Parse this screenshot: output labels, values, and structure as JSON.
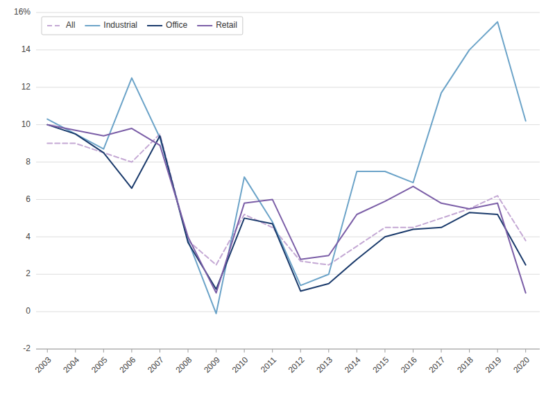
{
  "chart_data": {
    "type": "line",
    "x": [
      2003,
      2004,
      2005,
      2006,
      2007,
      2008,
      2009,
      2010,
      2011,
      2012,
      2013,
      2014,
      2015,
      2016,
      2017,
      2018,
      2019,
      2020
    ],
    "series": [
      {
        "name": "All",
        "color": "#c4a8d4",
        "line_style": "dashed",
        "values": [
          9.0,
          9.0,
          8.5,
          8.0,
          9.5,
          3.8,
          2.5,
          5.2,
          4.5,
          2.7,
          2.5,
          3.5,
          4.5,
          4.5,
          5.0,
          5.5,
          6.2,
          3.8
        ]
      },
      {
        "name": "Industrial",
        "color": "#6ba3c8",
        "line_style": "solid",
        "values": [
          10.3,
          9.5,
          8.7,
          12.5,
          9.3,
          3.8,
          -0.1,
          7.2,
          4.8,
          1.4,
          2.0,
          7.5,
          7.5,
          6.9,
          11.7,
          14.0,
          15.5,
          10.2
        ]
      },
      {
        "name": "Office",
        "color": "#1a3a6b",
        "line_style": "solid",
        "values": [
          10.0,
          9.5,
          8.5,
          6.6,
          9.4,
          3.7,
          1.2,
          5.0,
          4.7,
          1.1,
          1.5,
          2.8,
          4.0,
          4.4,
          4.5,
          5.3,
          5.2,
          2.5
        ]
      },
      {
        "name": "Retail",
        "color": "#7b5ea7",
        "line_style": "solid",
        "values": [
          10.0,
          9.7,
          9.4,
          9.8,
          8.9,
          4.0,
          1.0,
          5.8,
          6.0,
          2.8,
          3.0,
          5.2,
          5.9,
          6.7,
          5.8,
          5.5,
          5.8,
          1.0
        ]
      }
    ],
    "xlim": [
      2002.6,
      2020.5
    ],
    "xticks": [
      2003,
      2004,
      2005,
      2006,
      2007,
      2008,
      2009,
      2010,
      2011,
      2012,
      2013,
      2014,
      2015,
      2016,
      2017,
      2018,
      2019,
      2020
    ],
    "ylim": [
      -2,
      16
    ],
    "yticks": [
      -2,
      0,
      2,
      4,
      6,
      8,
      10,
      12,
      14,
      {
        "value": 16,
        "label": "16%"
      }
    ],
    "grid": "y",
    "legend": "upper left"
  }
}
